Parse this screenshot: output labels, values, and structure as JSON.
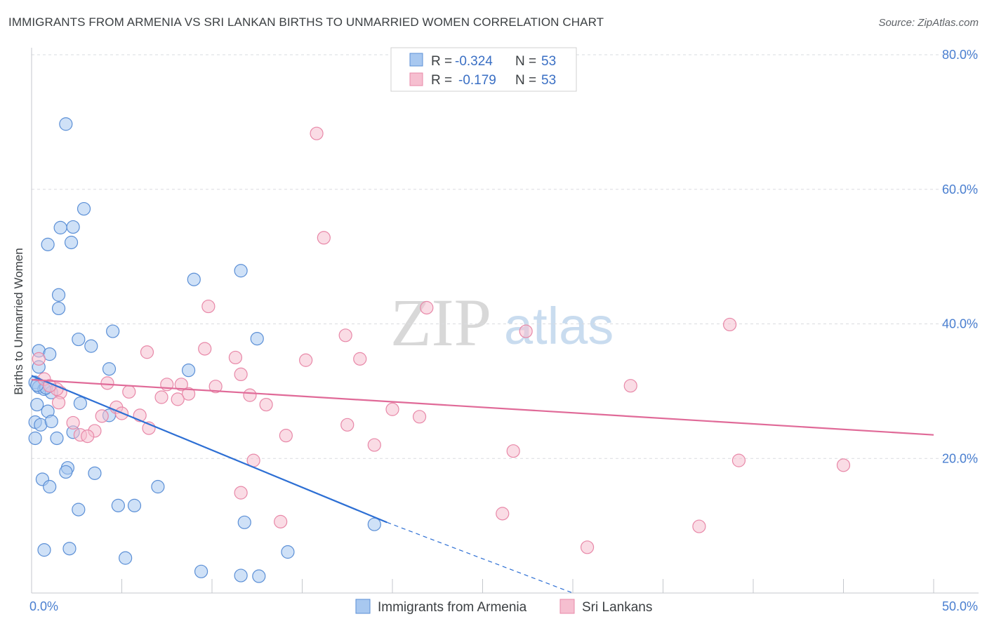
{
  "title": "IMMIGRANTS FROM ARMENIA VS SRI LANKAN BIRTHS TO UNMARRIED WOMEN CORRELATION CHART",
  "source": "Source: ZipAtlas.com",
  "watermark": {
    "zip": "ZIP",
    "atlas": "atlas"
  },
  "colors": {
    "armenia_fill": "#a8c8f0",
    "armenia_stroke": "#5b8fd6",
    "armenia_line": "#2d6fd4",
    "srilanka_fill": "#f6bfd0",
    "srilanka_stroke": "#e888a8",
    "srilanka_line": "#e06a98",
    "tick": "#4a7fd0",
    "grid": "#dadce0"
  },
  "legend": {
    "rows": [
      {
        "r_label": "R =",
        "r_value": "-0.324",
        "n_label": "N =",
        "n_value": "53"
      },
      {
        "r_label": "R =",
        "r_value": "-0.179",
        "n_label": "N =",
        "n_value": "53"
      }
    ]
  },
  "chart_data": {
    "type": "scatter",
    "title": "IMMIGRANTS FROM ARMENIA VS SRI LANKAN BIRTHS TO UNMARRIED WOMEN CORRELATION CHART",
    "xlabel": "",
    "ylabel": "Births to Unmarried Women",
    "xlim": [
      0,
      50
    ],
    "ylim": [
      0,
      80
    ],
    "x_tick_labels": [
      "0.0%",
      "50.0%"
    ],
    "y_ticks": [
      20,
      40,
      60,
      80
    ],
    "y_tick_labels": [
      "20.0%",
      "40.0%",
      "60.0%",
      "80.0%"
    ],
    "grid": true,
    "legend_position": "top-center",
    "series": [
      {
        "name": "Immigrants from Armenia",
        "points": [
          [
            1.9,
            69.7
          ],
          [
            2.9,
            57.1
          ],
          [
            2.3,
            54.4
          ],
          [
            1.6,
            54.3
          ],
          [
            2.2,
            52.1
          ],
          [
            0.9,
            51.8
          ],
          [
            11.6,
            47.9
          ],
          [
            9.0,
            46.6
          ],
          [
            1.5,
            44.3
          ],
          [
            1.5,
            42.3
          ],
          [
            4.5,
            38.9
          ],
          [
            12.5,
            37.8
          ],
          [
            2.6,
            37.7
          ],
          [
            3.3,
            36.7
          ],
          [
            0.4,
            36.0
          ],
          [
            1.0,
            35.5
          ],
          [
            0.4,
            33.6
          ],
          [
            4.3,
            33.3
          ],
          [
            8.7,
            33.1
          ],
          [
            0.2,
            31.3
          ],
          [
            0.4,
            30.6
          ],
          [
            0.7,
            30.3
          ],
          [
            1.1,
            29.8
          ],
          [
            0.3,
            28.0
          ],
          [
            0.9,
            27.0
          ],
          [
            2.7,
            28.2
          ],
          [
            0.2,
            25.4
          ],
          [
            4.3,
            26.4
          ],
          [
            0.5,
            25.0
          ],
          [
            1.1,
            25.5
          ],
          [
            2.3,
            23.9
          ],
          [
            1.4,
            23.0
          ],
          [
            0.2,
            23.0
          ],
          [
            2.0,
            18.6
          ],
          [
            1.9,
            18.0
          ],
          [
            3.5,
            17.8
          ],
          [
            0.6,
            16.9
          ],
          [
            1.0,
            15.8
          ],
          [
            7.0,
            15.8
          ],
          [
            4.8,
            13.0
          ],
          [
            5.7,
            13.0
          ],
          [
            2.6,
            12.4
          ],
          [
            11.8,
            10.5
          ],
          [
            19.0,
            10.2
          ],
          [
            0.7,
            6.4
          ],
          [
            2.1,
            6.6
          ],
          [
            14.2,
            6.1
          ],
          [
            5.2,
            5.2
          ],
          [
            9.4,
            3.2
          ],
          [
            11.6,
            2.6
          ],
          [
            12.6,
            2.5
          ],
          [
            0.8,
            30.5
          ],
          [
            0.3,
            30.9
          ]
        ],
        "trend": {
          "x": [
            0,
            19.7
          ],
          "y": [
            32.3,
            10.5
          ],
          "dashed_x": [
            19.7,
            30
          ],
          "dashed_y": [
            10.5,
            -0.9
          ]
        }
      },
      {
        "name": "Sri Lankans",
        "points": [
          [
            15.8,
            68.3
          ],
          [
            16.2,
            52.8
          ],
          [
            21.9,
            42.4
          ],
          [
            9.8,
            42.6
          ],
          [
            17.4,
            38.3
          ],
          [
            27.4,
            38.9
          ],
          [
            38.7,
            39.9
          ],
          [
            6.4,
            35.8
          ],
          [
            9.6,
            36.3
          ],
          [
            11.3,
            35.0
          ],
          [
            15.2,
            34.6
          ],
          [
            18.2,
            34.8
          ],
          [
            11.6,
            32.5
          ],
          [
            4.2,
            31.2
          ],
          [
            7.5,
            31.0
          ],
          [
            8.3,
            31.0
          ],
          [
            10.2,
            30.7
          ],
          [
            33.2,
            30.8
          ],
          [
            5.4,
            29.9
          ],
          [
            7.2,
            29.1
          ],
          [
            8.7,
            29.6
          ],
          [
            8.1,
            28.8
          ],
          [
            12.1,
            29.4
          ],
          [
            13.0,
            28.0
          ],
          [
            1.6,
            29.8
          ],
          [
            1.4,
            30.3
          ],
          [
            4.7,
            27.6
          ],
          [
            5.0,
            26.7
          ],
          [
            3.9,
            26.3
          ],
          [
            6.0,
            26.4
          ],
          [
            20.0,
            27.3
          ],
          [
            21.5,
            26.2
          ],
          [
            0.4,
            34.8
          ],
          [
            0.7,
            31.8
          ],
          [
            1.0,
            30.8
          ],
          [
            1.5,
            28.3
          ],
          [
            17.5,
            25.0
          ],
          [
            2.3,
            25.3
          ],
          [
            6.5,
            24.5
          ],
          [
            3.5,
            24.1
          ],
          [
            2.7,
            23.5
          ],
          [
            3.1,
            23.3
          ],
          [
            14.1,
            23.4
          ],
          [
            19.0,
            22.0
          ],
          [
            26.7,
            21.1
          ],
          [
            12.3,
            19.7
          ],
          [
            39.2,
            19.7
          ],
          [
            45.0,
            19.0
          ],
          [
            11.6,
            14.9
          ],
          [
            13.8,
            10.6
          ],
          [
            26.1,
            11.8
          ],
          [
            37.0,
            9.9
          ],
          [
            30.8,
            6.8
          ]
        ],
        "trend": {
          "x": [
            0,
            50
          ],
          "y": [
            31.7,
            23.5
          ]
        }
      }
    ]
  }
}
